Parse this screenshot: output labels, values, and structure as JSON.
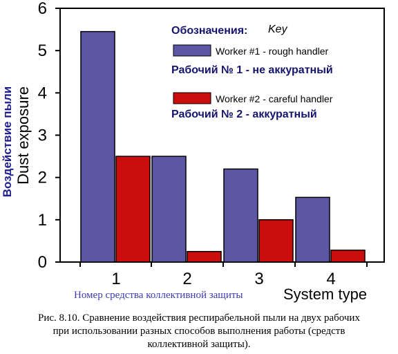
{
  "chart_data": {
    "type": "bar",
    "categories": [
      "1",
      "2",
      "3",
      "4"
    ],
    "series": [
      {
        "name": "Worker #1 - rough handler",
        "name_ru": "Рабочий № 1 - не аккуратный",
        "color": "#5c56a4",
        "values": [
          5.45,
          2.5,
          2.2,
          1.53
        ]
      },
      {
        "name": "Worker #2 - careful handler",
        "name_ru": "Рабочий № 2 - аккуратный",
        "color": "#cc0d0d",
        "values": [
          2.5,
          0.25,
          1.0,
          0.28
        ]
      }
    ],
    "ylim": [
      0,
      6
    ],
    "yticks": [
      "0",
      "1",
      "2",
      "3",
      "4",
      "5",
      "6"
    ],
    "ylabel": "Dust exposure",
    "ylabel_ru": "Воздействие пыли",
    "xlabel": "System type",
    "xlabel_ru": "Номер средства коллективной защиты",
    "legend_title_ru": "Обозначения:",
    "legend_title": "Key",
    "legend_position": "top-right",
    "grid": false
  },
  "caption": [
    "Рис. 8.10. Сравнение воздействия респирабельной пыли на двух рабочих",
    "при использовании разных способов выполнения работы (средств",
    "коллективной защиты)."
  ]
}
